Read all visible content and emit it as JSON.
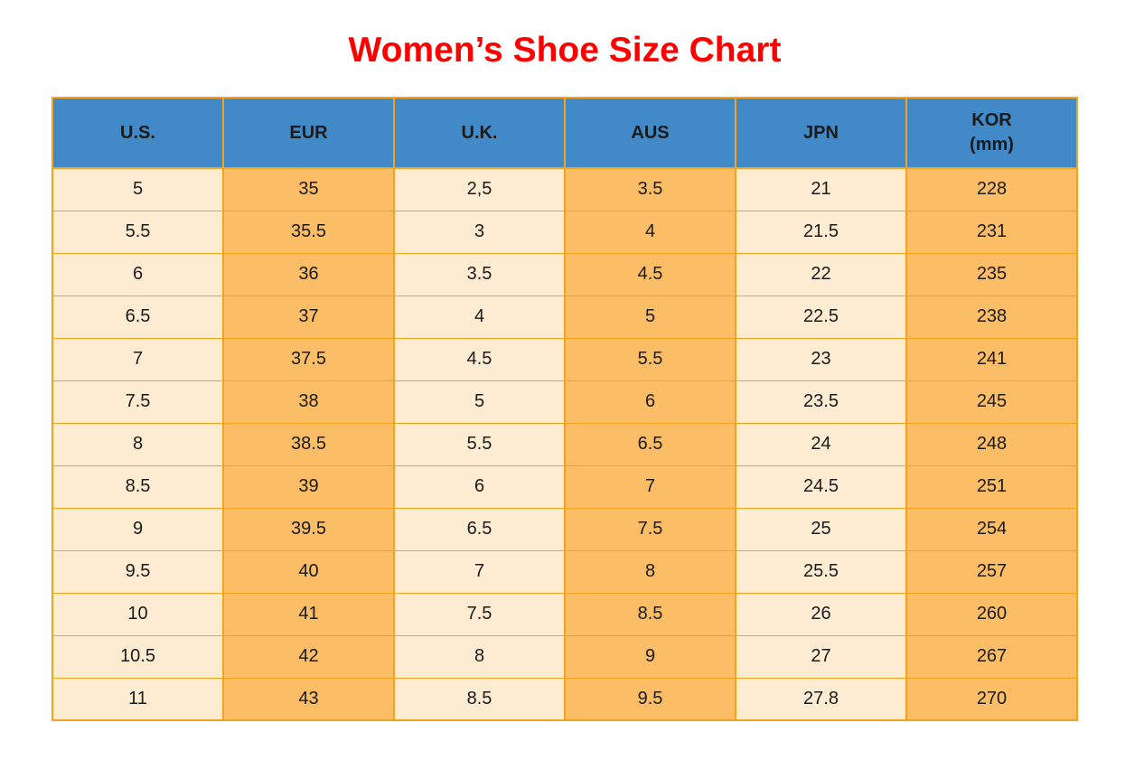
{
  "title": "Women’s Shoe Size Chart",
  "colors": {
    "title": "#FF0000",
    "header_bg": "#4189C7",
    "col_light": "#FDEBD2",
    "col_accent": "#FBBE67",
    "border": "#F7A21D",
    "text": "#1B1B1B"
  },
  "chart_data": {
    "type": "table",
    "title": "Women’s Shoe Size Chart",
    "legend_position": "none",
    "grid": "orange solid gridlines, blue header row, columns alternate cream and orange",
    "columns": [
      {
        "id": "us",
        "lines": [
          "U.S."
        ]
      },
      {
        "id": "eur",
        "lines": [
          "EUR"
        ]
      },
      {
        "id": "uk",
        "lines": [
          "U.K."
        ]
      },
      {
        "id": "aus",
        "lines": [
          "AUS"
        ]
      },
      {
        "id": "jpn",
        "lines": [
          "JPN"
        ]
      },
      {
        "id": "kor",
        "lines": [
          "KOR",
          "(mm)"
        ]
      }
    ],
    "rows": [
      [
        "5",
        "35",
        "2,5",
        "3.5",
        "21",
        "228"
      ],
      [
        "5.5",
        "35.5",
        "3",
        "4",
        "21.5",
        "231"
      ],
      [
        "6",
        "36",
        "3.5",
        "4.5",
        "22",
        "235"
      ],
      [
        "6.5",
        "37",
        "4",
        "5",
        "22.5",
        "238"
      ],
      [
        "7",
        "37.5",
        "4.5",
        "5.5",
        "23",
        "241"
      ],
      [
        "7.5",
        "38",
        "5",
        "6",
        "23.5",
        "245"
      ],
      [
        "8",
        "38.5",
        "5.5",
        "6.5",
        "24",
        "248"
      ],
      [
        "8.5",
        "39",
        "6",
        "7",
        "24.5",
        "251"
      ],
      [
        "9",
        "39.5",
        "6.5",
        "7.5",
        "25",
        "254"
      ],
      [
        "9.5",
        "40",
        "7",
        "8",
        "25.5",
        "257"
      ],
      [
        "10",
        "41",
        "7.5",
        "8.5",
        "26",
        "260"
      ],
      [
        "10.5",
        "42",
        "8",
        "9",
        "27",
        "267"
      ],
      [
        "11",
        "43",
        "8.5",
        "9.5",
        "27.8",
        "270"
      ]
    ]
  }
}
